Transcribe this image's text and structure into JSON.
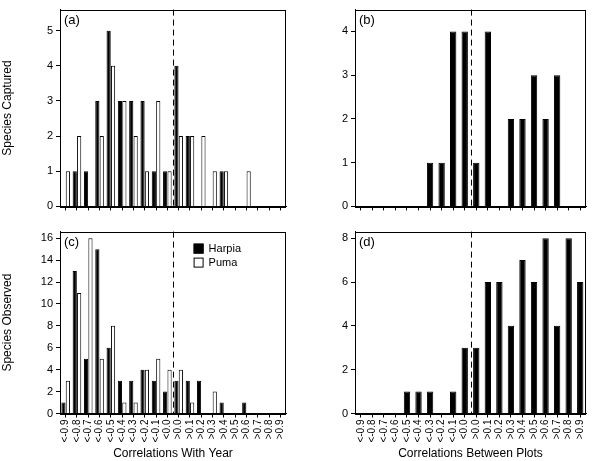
{
  "chart_data": [
    {
      "type": "bar",
      "title": "(a)",
      "y_label": "Species Captured",
      "categories": [
        "<-0.9",
        "<-0.8",
        "<-0.7",
        "<-0.6",
        "<-0.5",
        "<-0.4",
        "<-0.3",
        "<-0.2",
        "<-0.1",
        "<0.0",
        ">0.0",
        ">0.1",
        ">0.2",
        ">0.3",
        ">0.4",
        ">0.5",
        ">0.6",
        ">0.7",
        ">0.8",
        ">0.9"
      ],
      "series": [
        {
          "color": "#000000",
          "values": [
            0,
            1,
            1,
            3,
            5,
            3,
            3,
            3,
            1,
            1,
            4,
            2,
            0,
            0,
            1,
            0,
            0,
            0,
            0,
            0
          ]
        },
        {
          "color": "#ffffff",
          "values": [
            1,
            2,
            0,
            2,
            4,
            3,
            2,
            1,
            3,
            1,
            2,
            2,
            2,
            1,
            1,
            0,
            1,
            0,
            0,
            0
          ]
        }
      ],
      "ylim": [
        0,
        5.6
      ],
      "yticks": [
        0,
        1,
        2,
        3,
        4,
        5
      ],
      "grid": false,
      "tick_labels": "y"
    },
    {
      "type": "bar",
      "title": "(b)",
      "categories": [
        "<-0.9",
        "<-0.8",
        "<-0.7",
        "<-0.6",
        "<-0.5",
        "<-0.4",
        "<-0.3",
        "<-0.2",
        "<-0.1",
        "<0.0",
        ">0.0",
        ">0.1",
        ">0.2",
        ">0.3",
        ">0.4",
        ">0.5",
        ">0.6",
        ">0.7",
        ">0.8",
        ">0.9"
      ],
      "values": [
        0,
        0,
        0,
        0,
        0,
        0,
        1,
        1,
        4,
        4,
        1,
        4,
        0,
        2,
        2,
        3,
        2,
        3,
        0,
        0
      ],
      "color": "#000000",
      "ylim": [
        0,
        4.5
      ],
      "yticks": [
        0,
        1,
        2,
        3,
        4
      ],
      "grid": false,
      "tick_labels": "y"
    },
    {
      "type": "bar",
      "title": "(c)",
      "y_label": "Species Observed",
      "x_label": "Correlations With Year",
      "categories": [
        "<-0.9",
        "<-0.8",
        "<-0.7",
        "<-0.6",
        "<-0.5",
        "<-0.4",
        "<-0.3",
        "<-0.2",
        "<-0.1",
        "<0.0",
        ">0.0",
        ">0.1",
        ">0.2",
        ">0.3",
        ">0.4",
        ">0.5",
        ">0.6",
        ">0.7",
        ">0.8",
        ">0.9"
      ],
      "series": [
        {
          "name": "Harpia",
          "color": "#000000",
          "values": [
            1,
            13,
            5,
            15,
            6,
            3,
            3,
            4,
            3,
            2,
            3,
            3,
            3,
            0,
            1,
            0,
            1,
            0,
            0,
            0
          ]
        },
        {
          "name": "Puma",
          "color": "#ffffff",
          "values": [
            3,
            11,
            16,
            5,
            8,
            1,
            1,
            4,
            5,
            4,
            4,
            1,
            0,
            2,
            0,
            0,
            0,
            0,
            0,
            0
          ]
        }
      ],
      "ylim": [
        0,
        16.6
      ],
      "yticks": [
        0,
        2,
        4,
        6,
        8,
        10,
        12,
        14,
        16
      ],
      "grid": false,
      "legend": "top right"
    },
    {
      "type": "bar",
      "title": "(d)",
      "x_label": "Correlations Between Plots",
      "categories": [
        "<-0.9",
        "<-0.8",
        "<-0.7",
        "<-0.6",
        "<-0.5",
        "<-0.4",
        "<-0.3",
        "<-0.2",
        "<-0.1",
        "<0.0",
        ">0.0",
        ">0.1",
        ">0.2",
        ">0.3",
        ">0.4",
        ">0.5",
        ">0.6",
        ">0.7",
        ">0.8",
        ">0.9"
      ],
      "values": [
        0,
        0,
        0,
        0,
        1,
        1,
        1,
        0,
        1,
        3,
        3,
        6,
        6,
        4,
        7,
        6,
        8,
        4,
        8,
        6
      ],
      "color": "#000000",
      "ylim": [
        0,
        8.3
      ],
      "yticks": [
        0,
        2,
        4,
        6,
        8
      ],
      "grid": false
    }
  ]
}
